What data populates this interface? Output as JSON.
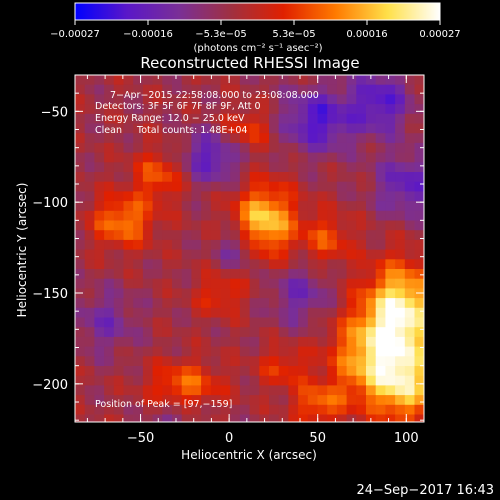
{
  "chart_data": {
    "type": "heatmap",
    "title": "Reconstructed RHESSI Image",
    "xlabel": "Heliocentric X (arcsec)",
    "ylabel": "Heliocentric Y (arcsec)",
    "xlim": [
      -87,
      110
    ],
    "ylim": [
      -221,
      -30
    ],
    "x_ticks": [
      -50,
      0,
      50,
      100
    ],
    "y_ticks": [
      -50,
      -100,
      -150,
      -200
    ],
    "x_tick_labels": [
      "−50",
      "0",
      "50",
      "100"
    ],
    "y_tick_labels": [
      "−50",
      "−100",
      "−150",
      "−200"
    ],
    "colorbar": {
      "range": [
        -0.00027,
        0.00027
      ],
      "tick_labels": [
        "−0.00027",
        "−0.00016",
        "−5.3e−05",
        "5.3e−05",
        "0.00016",
        "0.00027"
      ],
      "unit_label": "(photons cm⁻² s⁻¹ asec⁻²)",
      "colors": [
        "#0000ff",
        "#5a17c8",
        "#7a2f96",
        "#a03040",
        "#e02000",
        "#ff7a00",
        "#ffe04a",
        "#ffffff"
      ]
    },
    "annotations": {
      "time_range": "7−Apr−2015 22:58:08.000 to 23:08:08.000",
      "detectors": "Detectors: 3F 5F 6F 7F 8F 9F, Att 0",
      "energy_range": "Energy Range: 12.0 − 25.0 keV",
      "clean_counts": "Clean     Total counts: 1.48E+04",
      "peak": "Position of Peak = [97,−159]"
    },
    "peak_position": [
      97,
      -159
    ],
    "footer_date": "24−Sep−2017 16:43",
    "features": [
      {
        "x": 20,
        "y": -110,
        "value": 0.00023,
        "sx": 12,
        "sy": 14
      },
      {
        "x": 97,
        "y": -159,
        "value": 0.00027,
        "sx": 14,
        "sy": 18
      },
      {
        "x": 80,
        "y": -185,
        "value": 0.0002,
        "sx": 16,
        "sy": 18
      },
      {
        "x": 100,
        "y": -200,
        "value": 0.00019,
        "sx": 12,
        "sy": 14
      },
      {
        "x": -60,
        "y": -110,
        "value": 0.00016,
        "sx": 12,
        "sy": 10
      },
      {
        "x": -40,
        "y": -85,
        "value": 0.00012,
        "sx": 10,
        "sy": 10
      },
      {
        "x": -25,
        "y": -200,
        "value": 0.00014,
        "sx": 14,
        "sy": 9
      },
      {
        "x": 10,
        "y": -60,
        "value": 0.0001,
        "sx": 10,
        "sy": 8
      },
      {
        "x": 55,
        "y": -120,
        "value": 0.00011,
        "sx": 10,
        "sy": 10
      },
      {
        "x": 50,
        "y": -210,
        "value": 0.00013,
        "sx": 10,
        "sy": 8
      },
      {
        "x": -5,
        "y": -150,
        "value": 9e-05,
        "sx": 10,
        "sy": 8
      },
      {
        "x": 30,
        "y": -190,
        "value": 9e-05,
        "sx": 10,
        "sy": 8
      },
      {
        "x": -10,
        "y": -75,
        "value": -0.00014,
        "sx": 12,
        "sy": 10
      },
      {
        "x": 50,
        "y": -55,
        "value": -0.00016,
        "sx": 14,
        "sy": 12
      },
      {
        "x": 85,
        "y": -45,
        "value": -0.00015,
        "sx": 12,
        "sy": 12
      },
      {
        "x": 40,
        "y": -150,
        "value": -0.0001,
        "sx": 12,
        "sy": 12
      },
      {
        "x": -70,
        "y": -165,
        "value": -9e-05,
        "sx": 12,
        "sy": 12
      },
      {
        "x": 5,
        "y": -125,
        "value": -0.00011,
        "sx": 8,
        "sy": 8
      },
      {
        "x": -30,
        "y": -215,
        "value": -6e-05,
        "sx": 10,
        "sy": 6
      },
      {
        "x": 100,
        "y": -90,
        "value": -0.00013,
        "sx": 12,
        "sy": 12
      }
    ]
  }
}
